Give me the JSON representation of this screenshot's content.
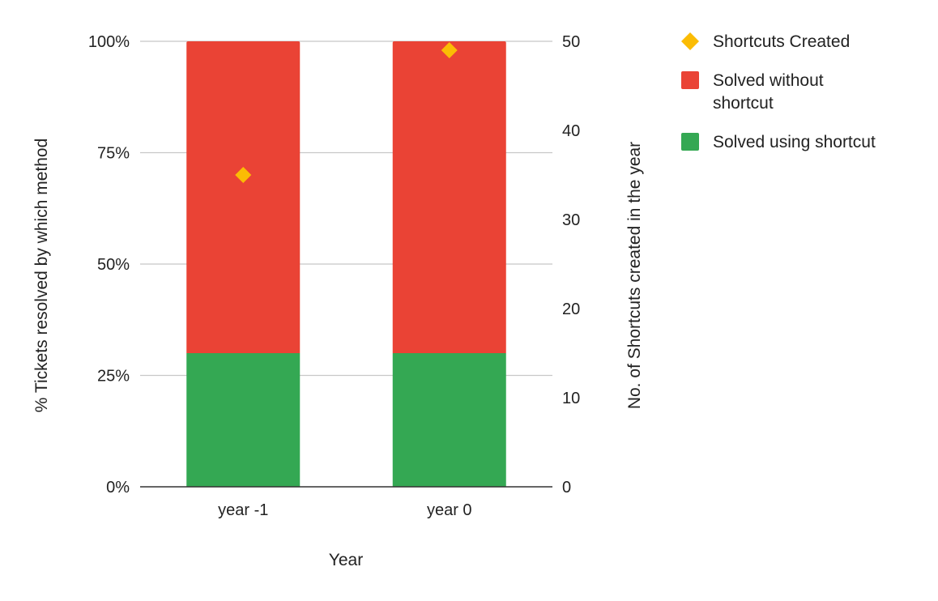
{
  "chart_data": {
    "type": "bar",
    "stacked": true,
    "categories": [
      "year -1",
      "year 0"
    ],
    "xlabel": "Year",
    "ylabel_left": "% Tickets resolved by which method",
    "ylabel_right": "No. of Shortcuts created in the year",
    "left_axis": {
      "ylim": [
        0,
        100
      ],
      "ticks": [
        "0%",
        "25%",
        "50%",
        "75%",
        "100%"
      ],
      "tick_values": [
        0,
        25,
        50,
        75,
        100
      ]
    },
    "right_axis": {
      "ylim": [
        0,
        50
      ],
      "ticks": [
        "0",
        "10",
        "20",
        "30",
        "40",
        "50"
      ],
      "tick_values": [
        0,
        10,
        20,
        30,
        40,
        50
      ]
    },
    "grid": true,
    "legend_position": "right",
    "series": [
      {
        "name": "Shortcuts Created",
        "kind": "scatter",
        "axis": "right",
        "marker": "diamond",
        "color": "#FBBC04",
        "values": [
          35,
          49
        ]
      },
      {
        "name": "Solved without shortcut",
        "kind": "bar",
        "axis": "left",
        "color": "#EA4335",
        "values": [
          70,
          70
        ]
      },
      {
        "name": "Solved using shortcut",
        "kind": "bar",
        "axis": "left",
        "color": "#34A853",
        "values": [
          30,
          30
        ]
      }
    ],
    "legend": [
      {
        "label_lines": [
          "Shortcuts Created"
        ],
        "marker": "diamond",
        "color": "#FBBC04"
      },
      {
        "label_lines": [
          "Solved without",
          "shortcut"
        ],
        "marker": "square",
        "color": "#EA4335"
      },
      {
        "label_lines": [
          "Solved using shortcut"
        ],
        "marker": "square",
        "color": "#34A853"
      }
    ]
  }
}
